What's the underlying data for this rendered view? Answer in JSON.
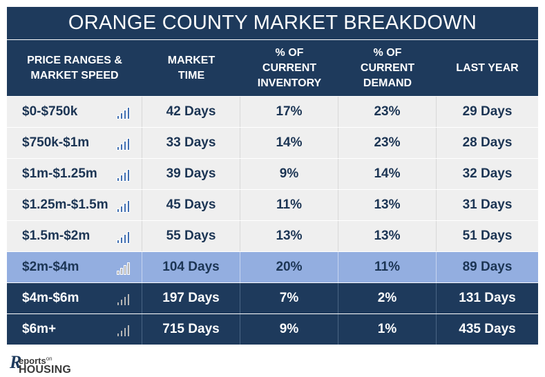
{
  "title": "ORANGE COUNTY MARKET BREAKDOWN",
  "columns": [
    "PRICE RANGES &\nMARKET SPEED",
    "MARKET\nTIME",
    "% OF\nCURRENT\nINVENTORY",
    "% OF\nCURRENT\nDEMAND",
    "LAST YEAR"
  ],
  "rows": [
    {
      "range": "$0-$750k",
      "market_time": "42 Days",
      "inventory": "17%",
      "demand": "23%",
      "last_year": "29 Days",
      "style": "light",
      "speed_icon": "bar-chart-icon-blue"
    },
    {
      "range": "$750k-$1m",
      "market_time": "33 Days",
      "inventory": "14%",
      "demand": "23%",
      "last_year": "28 Days",
      "style": "light",
      "speed_icon": "bar-chart-icon-blue"
    },
    {
      "range": "$1m-$1.25m",
      "market_time": "39 Days",
      "inventory": "9%",
      "demand": "14%",
      "last_year": "32 Days",
      "style": "light",
      "speed_icon": "bar-chart-icon-blue"
    },
    {
      "range": "$1.25m-$1.5m",
      "market_time": "45 Days",
      "inventory": "11%",
      "demand": "13%",
      "last_year": "31 Days",
      "style": "light",
      "speed_icon": "bar-chart-icon-blue"
    },
    {
      "range": "$1.5m-$2m",
      "market_time": "55 Days",
      "inventory": "13%",
      "demand": "13%",
      "last_year": "51 Days",
      "style": "light",
      "speed_icon": "bar-chart-icon-blue"
    },
    {
      "range": "$2m-$4m",
      "market_time": "104 Days",
      "inventory": "20%",
      "demand": "11%",
      "last_year": "89 Days",
      "style": "highlight",
      "speed_icon": "bar-chart-icon-gray"
    },
    {
      "range": "$4m-$6m",
      "market_time": "197 Days",
      "inventory": "7%",
      "demand": "2%",
      "last_year": "131 Days",
      "style": "dark",
      "speed_icon": "bar-chart-icon-gray"
    },
    {
      "range": "$6m+",
      "market_time": "715 Days",
      "inventory": "9%",
      "demand": "1%",
      "last_year": "435 Days",
      "style": "dark",
      "speed_icon": "bar-chart-icon-gray"
    }
  ],
  "colors": {
    "header_bg": "#1e3a5c",
    "light_row_bg": "#efefef",
    "highlight_row_bg": "#93aee0",
    "icon_blue": "#3f6db0",
    "icon_gray": "#b5b5b5"
  },
  "logo": {
    "mark": "R",
    "reports": "eports",
    "on": "on",
    "housing": "HOUSING"
  }
}
